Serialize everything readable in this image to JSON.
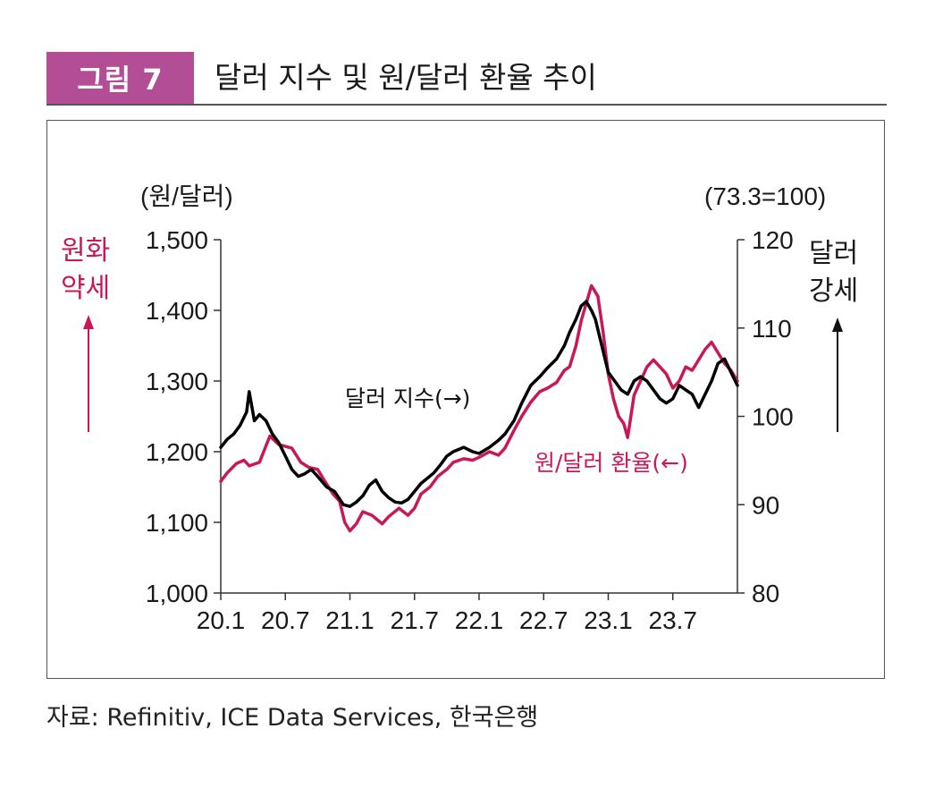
{
  "header": {
    "figure_label": "그림 7",
    "title": "달러 지수 및 원/달러 환율 추이"
  },
  "source": "자료: Refinitiv, ICE Data Services, 한국은행",
  "colors": {
    "accent": "#b34d96",
    "krw": "#c8185a",
    "dxy": "#000000",
    "text": "#1a1a1a"
  },
  "chart_data": {
    "type": "line",
    "left_axis": {
      "unit_label": "(원/달러)",
      "ylim": [
        1000,
        1500
      ],
      "ticks": [
        "1,000",
        "1,100",
        "1,200",
        "1,300",
        "1,400",
        "1,500"
      ],
      "note_lines": [
        "원화",
        "약세"
      ]
    },
    "right_axis": {
      "unit_label": "(73.3=100)",
      "ylim": [
        80,
        120
      ],
      "ticks": [
        "80",
        "90",
        "100",
        "110",
        "120"
      ],
      "note_lines": [
        "달러",
        "강세"
      ]
    },
    "x_ticks": [
      "20.1",
      "20.7",
      "21.1",
      "21.7",
      "22.1",
      "22.7",
      "23.1",
      "23.7"
    ],
    "xlim": [
      2020.0,
      2024.0
    ],
    "series": [
      {
        "name": "원/달러 환율(←)",
        "axis": "left",
        "color": "#c8185a",
        "x": [
          2020.0,
          2020.05,
          2020.12,
          2020.18,
          2020.22,
          2020.3,
          2020.38,
          2020.45,
          2020.55,
          2020.62,
          2020.68,
          2020.75,
          2020.8,
          2020.87,
          2020.92,
          2020.96,
          2021.0,
          2021.05,
          2021.1,
          2021.17,
          2021.25,
          2021.3,
          2021.38,
          2021.45,
          2021.5,
          2021.55,
          2021.62,
          2021.68,
          2021.75,
          2021.8,
          2021.88,
          2021.95,
          2022.0,
          2022.08,
          2022.15,
          2022.2,
          2022.27,
          2022.33,
          2022.4,
          2022.47,
          2022.53,
          2022.6,
          2022.66,
          2022.7,
          2022.75,
          2022.79,
          2022.83,
          2022.87,
          2022.92,
          2022.96,
          2023.0,
          2023.04,
          2023.08,
          2023.12,
          2023.15,
          2023.2,
          2023.25,
          2023.3,
          2023.35,
          2023.4,
          2023.45,
          2023.5,
          2023.55,
          2023.6,
          2023.65,
          2023.7,
          2023.75,
          2023.8,
          2023.85,
          2023.9,
          2023.95,
          2024.0
        ],
        "y": [
          1158,
          1170,
          1183,
          1188,
          1180,
          1185,
          1222,
          1210,
          1205,
          1185,
          1178,
          1175,
          1160,
          1140,
          1130,
          1100,
          1088,
          1098,
          1115,
          1110,
          1098,
          1108,
          1120,
          1110,
          1120,
          1140,
          1150,
          1165,
          1175,
          1185,
          1190,
          1188,
          1192,
          1200,
          1195,
          1205,
          1230,
          1250,
          1270,
          1285,
          1290,
          1298,
          1315,
          1320,
          1350,
          1385,
          1410,
          1435,
          1420,
          1370,
          1310,
          1275,
          1250,
          1240,
          1220,
          1280,
          1300,
          1320,
          1330,
          1320,
          1310,
          1290,
          1300,
          1320,
          1315,
          1330,
          1345,
          1355,
          1340,
          1325,
          1315,
          1300
        ]
      },
      {
        "name": "달러 지수(→)",
        "axis": "right",
        "color": "#000000",
        "x": [
          2020.0,
          2020.05,
          2020.1,
          2020.15,
          2020.2,
          2020.22,
          2020.26,
          2020.3,
          2020.35,
          2020.4,
          2020.45,
          2020.5,
          2020.55,
          2020.6,
          2020.65,
          2020.7,
          2020.75,
          2020.82,
          2020.88,
          2020.95,
          2021.0,
          2021.05,
          2021.1,
          2021.15,
          2021.2,
          2021.25,
          2021.3,
          2021.35,
          2021.4,
          2021.45,
          2021.5,
          2021.55,
          2021.6,
          2021.65,
          2021.7,
          2021.75,
          2021.8,
          2021.88,
          2021.95,
          2022.0,
          2022.08,
          2022.15,
          2022.2,
          2022.27,
          2022.33,
          2022.4,
          2022.47,
          2022.53,
          2022.6,
          2022.66,
          2022.7,
          2022.75,
          2022.79,
          2022.83,
          2022.87,
          2022.9,
          2022.95,
          2023.0,
          2023.05,
          2023.1,
          2023.15,
          2023.2,
          2023.25,
          2023.3,
          2023.35,
          2023.4,
          2023.45,
          2023.5,
          2023.55,
          2023.6,
          2023.65,
          2023.7,
          2023.75,
          2023.8,
          2023.85,
          2023.9,
          2023.95,
          2024.0
        ],
        "y": [
          96.5,
          97.4,
          98.0,
          99.0,
          100.5,
          102.8,
          99.5,
          100.2,
          99.5,
          98.0,
          97.0,
          95.5,
          94.0,
          93.2,
          93.5,
          94.0,
          93.2,
          92.0,
          91.5,
          90.0,
          89.8,
          90.3,
          91.0,
          92.2,
          92.8,
          91.5,
          90.8,
          90.3,
          90.2,
          90.6,
          91.5,
          92.4,
          93.0,
          93.6,
          94.5,
          95.5,
          96.0,
          96.5,
          96.0,
          95.8,
          96.5,
          97.3,
          98.0,
          99.5,
          101.5,
          103.5,
          104.5,
          105.5,
          106.5,
          108.0,
          109.5,
          111.0,
          112.5,
          113.0,
          112.0,
          111.0,
          108.0,
          105.0,
          104.0,
          103.0,
          102.5,
          104.0,
          104.5,
          104.0,
          103.0,
          102.0,
          101.5,
          102.0,
          103.5,
          103.0,
          102.5,
          101.0,
          102.5,
          104.0,
          106.0,
          106.5,
          105.0,
          103.5
        ]
      }
    ],
    "annotations": [
      "달러 지수(→)",
      "원/달러 환율(←)"
    ]
  }
}
